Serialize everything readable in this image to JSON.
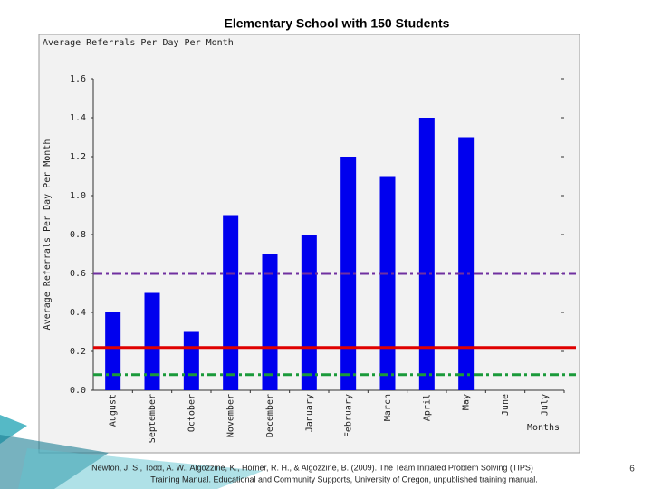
{
  "slide": {
    "title": "Elementary School with 150 Students",
    "citation": [
      "Newton, J. S., Todd, A. W., Algozzine, K., Horner, R. H., & Algozzine, B. (2009). The Team Initiated Problem Solving (TIPS)",
      "Training Manual. Educational and Community Supports, University of Oregon, unpublished training manual."
    ],
    "page_number": "6"
  },
  "chart_data": {
    "type": "bar",
    "title": "Average Referrals Per Day Per Month",
    "y_label": "Average Referrals Per Day Per Month",
    "x_label": "Months",
    "categories": [
      "August",
      "September",
      "October",
      "November",
      "December",
      "January",
      "February",
      "March",
      "April",
      "May",
      "June",
      "July"
    ],
    "values": [
      0.4,
      0.5,
      0.3,
      0.9,
      0.7,
      0.8,
      1.2,
      1.1,
      1.4,
      1.3,
      null,
      null
    ],
    "color": "#0000ee",
    "ylim": [
      0,
      1.6
    ],
    "yticks": [
      {
        "value": 0,
        "label": "0.0"
      },
      {
        "value": 0.2,
        "label": "0.2"
      },
      {
        "value": 0.4,
        "label": "0.4"
      },
      {
        "value": 0.6,
        "label": "0.6"
      },
      {
        "value": 0.8,
        "label": "0.8"
      },
      {
        "value": 1,
        "label": "1.0"
      },
      {
        "value": 1.2,
        "label": "1.2"
      },
      {
        "value": 1.4,
        "label": "1.4"
      },
      {
        "value": 1.6,
        "label": "1.6"
      }
    ],
    "reference_lines": [
      {
        "value": 0.6,
        "color": "#7030a0",
        "style": "dashdot"
      },
      {
        "value": 0.22,
        "color": "#e00000",
        "style": "solid"
      },
      {
        "value": 0.08,
        "color": "#1a9a3a",
        "style": "dashdot"
      }
    ]
  }
}
